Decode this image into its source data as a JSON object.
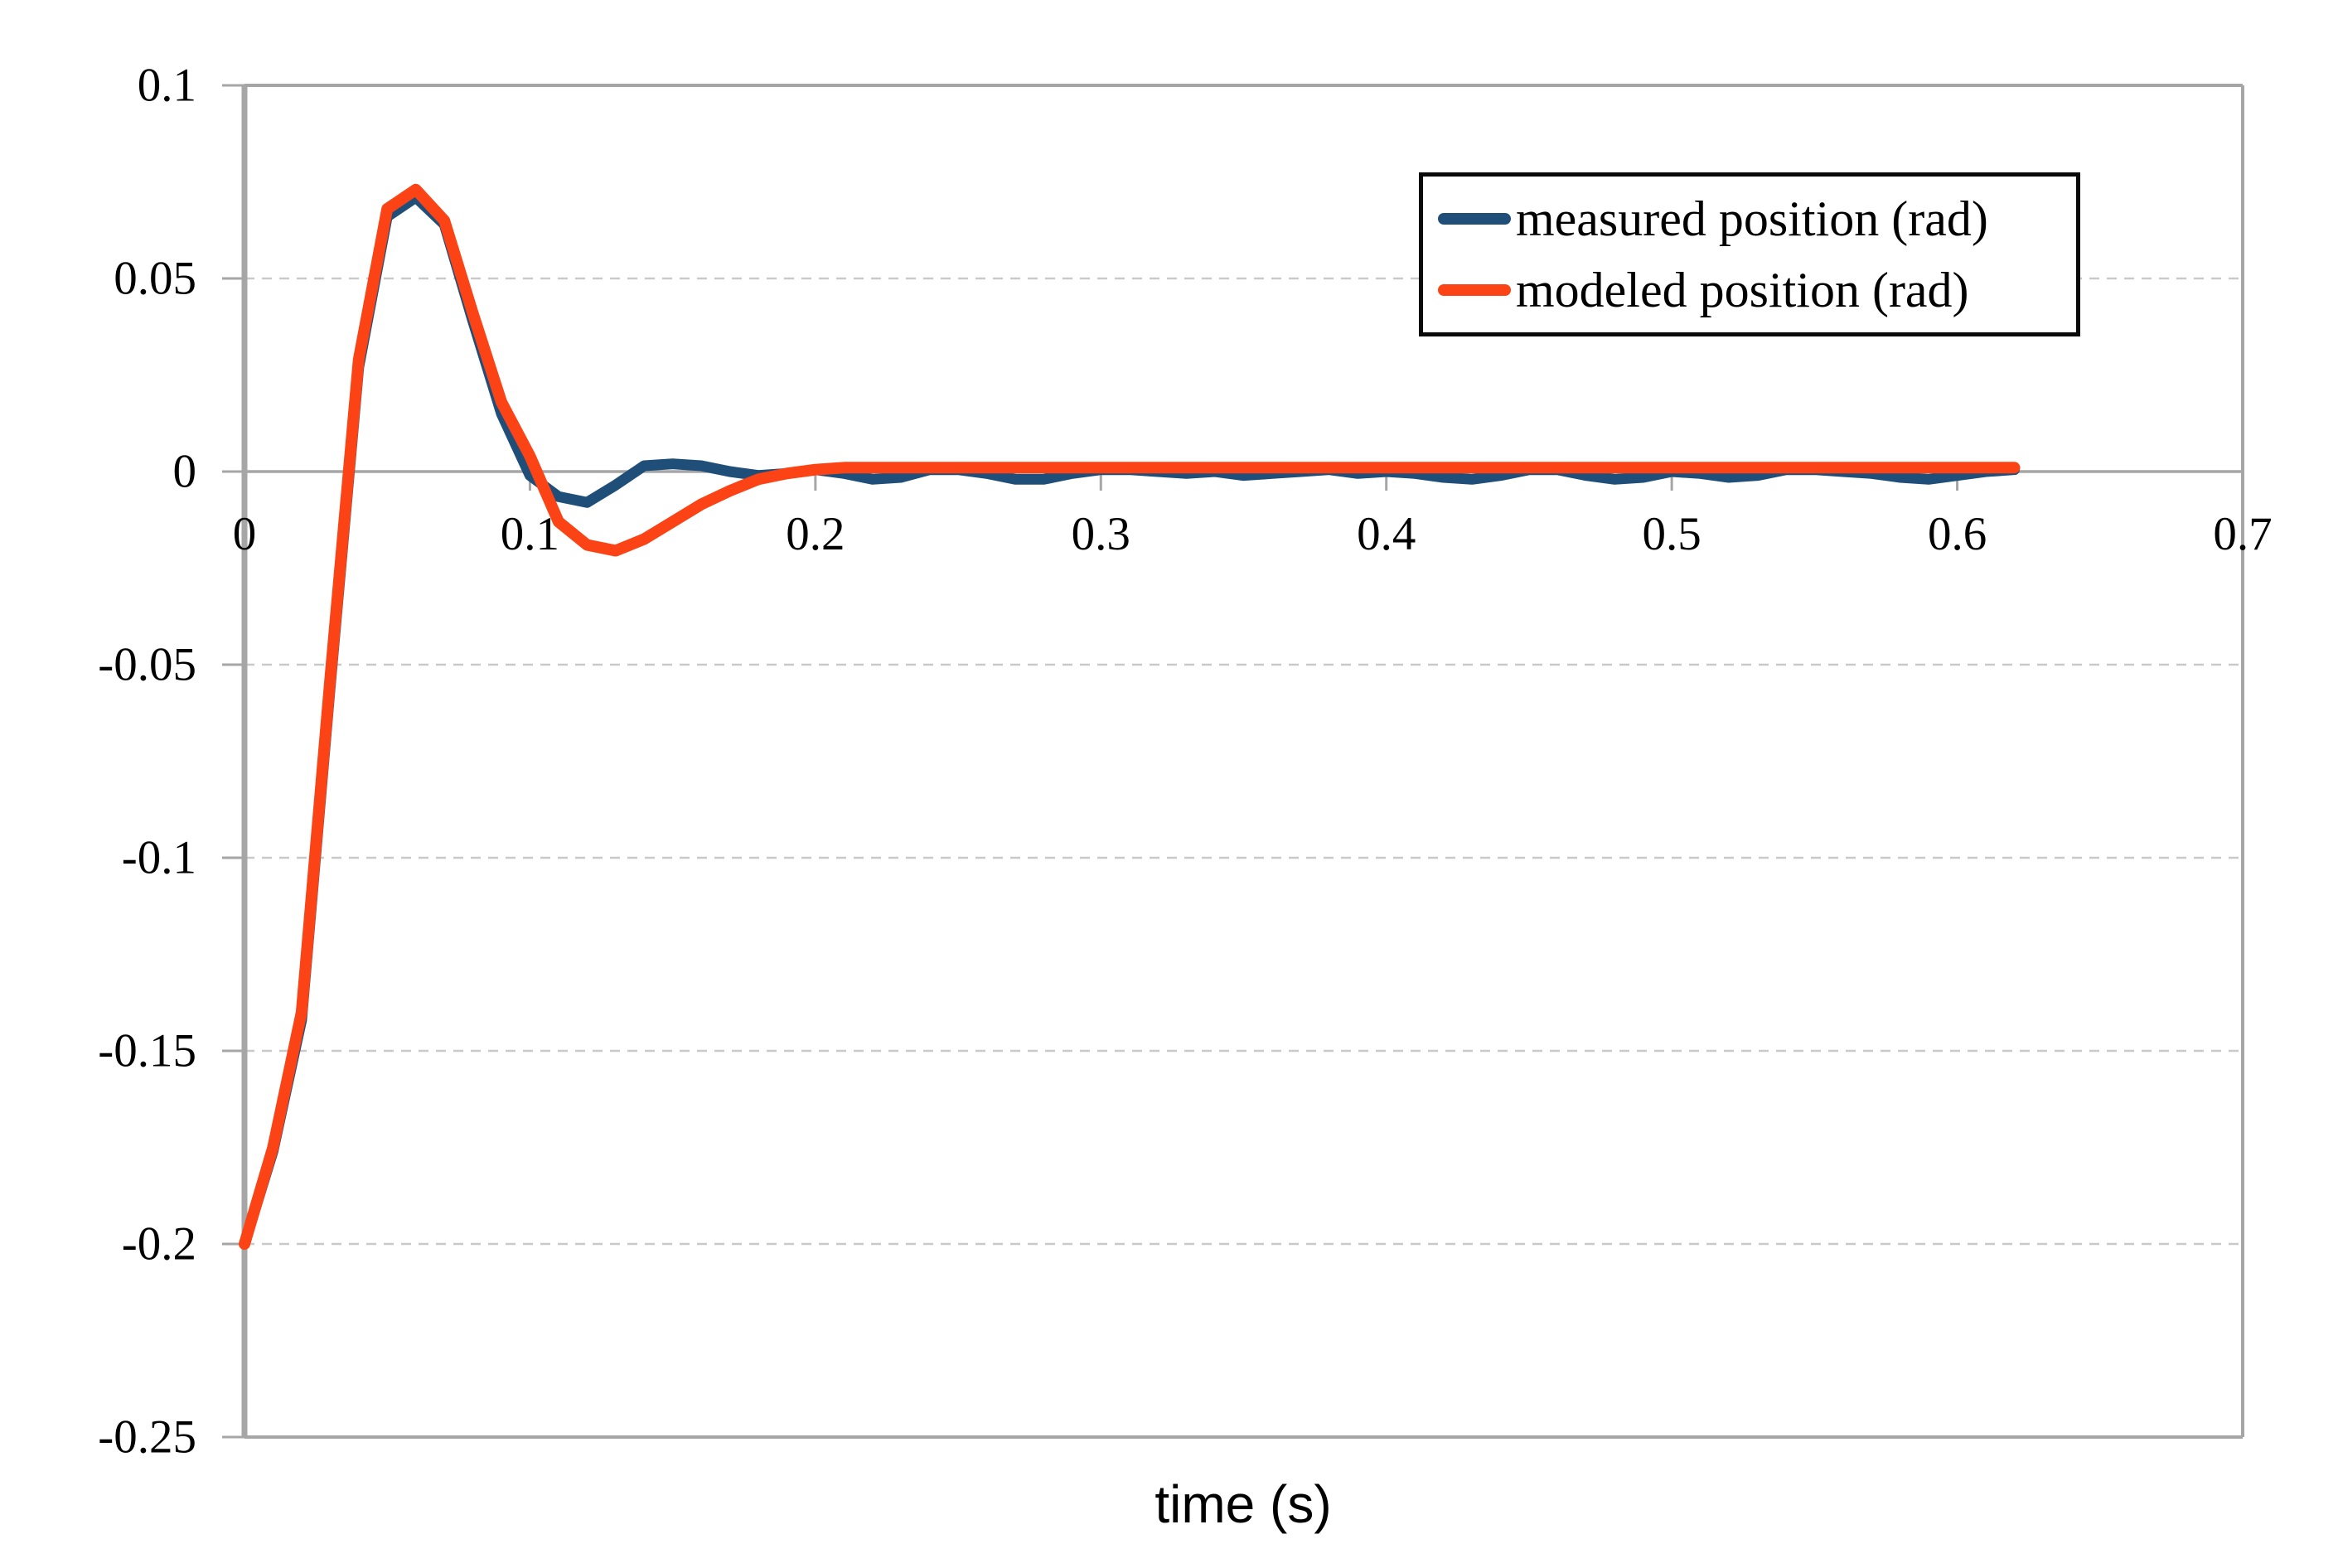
{
  "chart_data": {
    "type": "line",
    "title": "",
    "xlabel": "time (s)",
    "ylabel": "",
    "xlim": [
      0,
      0.7
    ],
    "ylim": [
      -0.25,
      0.1
    ],
    "x_ticks": [
      0,
      0.1,
      0.2,
      0.3,
      0.4,
      0.5,
      0.6,
      0.7
    ],
    "x_tick_labels": [
      "0",
      "0.1",
      "0.2",
      "0.3",
      "0.4",
      "0.5",
      "0.6",
      "0.7"
    ],
    "y_ticks": [
      0.1,
      0.05,
      0,
      -0.05,
      -0.1,
      -0.15,
      -0.2,
      -0.25
    ],
    "y_tick_labels": [
      "0.1",
      "0.05",
      "0",
      "-0.05",
      "-0.1",
      "-0.15",
      "-0.2",
      "-0.25"
    ],
    "grid": "horizontal dashed gridlines at 0.05, -0.05, -0.1, -0.15, -0.2; solid lines at 0.1, 0 and -0.25",
    "dashed_gridline_values": [
      0.05,
      -0.05,
      -0.1,
      -0.15,
      -0.2
    ],
    "legend_position": "inside upper right",
    "series": [
      {
        "name": "measured position (rad)",
        "color": "#1F4E79",
        "points": [
          [
            0.0,
            -0.2
          ],
          [
            0.01,
            -0.176
          ],
          [
            0.02,
            -0.142
          ],
          [
            0.03,
            -0.056
          ],
          [
            0.04,
            0.027
          ],
          [
            0.05,
            0.066
          ],
          [
            0.06,
            0.071
          ],
          [
            0.07,
            0.064
          ],
          [
            0.08,
            0.039
          ],
          [
            0.09,
            0.015
          ],
          [
            0.1,
            -0.001
          ],
          [
            0.11,
            -0.0065
          ],
          [
            0.12,
            -0.008
          ],
          [
            0.13,
            -0.0035
          ],
          [
            0.14,
            0.0015
          ],
          [
            0.15,
            0.002
          ],
          [
            0.16,
            0.0015
          ],
          [
            0.17,
            0.0
          ],
          [
            0.18,
            -0.001
          ],
          [
            0.19,
            -0.0005
          ],
          [
            0.2,
            0.0005
          ],
          [
            0.21,
            -0.0005
          ],
          [
            0.22,
            -0.002
          ],
          [
            0.23,
            -0.0015
          ],
          [
            0.24,
            0.0005
          ],
          [
            0.25,
            0.0005
          ],
          [
            0.26,
            -0.0005
          ],
          [
            0.27,
            -0.002
          ],
          [
            0.28,
            -0.002
          ],
          [
            0.29,
            -0.0005
          ],
          [
            0.3,
            0.0005
          ],
          [
            0.31,
            0.0005
          ],
          [
            0.32,
            0.0
          ],
          [
            0.33,
            -0.0005
          ],
          [
            0.34,
            0.0
          ],
          [
            0.35,
            -0.001
          ],
          [
            0.36,
            -0.0005
          ],
          [
            0.37,
            0.0
          ],
          [
            0.38,
            0.0005
          ],
          [
            0.39,
            -0.0005
          ],
          [
            0.4,
            0.0
          ],
          [
            0.41,
            -0.0005
          ],
          [
            0.42,
            -0.0015
          ],
          [
            0.43,
            -0.002
          ],
          [
            0.44,
            -0.001
          ],
          [
            0.45,
            0.0005
          ],
          [
            0.46,
            0.0005
          ],
          [
            0.47,
            -0.001
          ],
          [
            0.48,
            -0.002
          ],
          [
            0.49,
            -0.0015
          ],
          [
            0.5,
            0.0
          ],
          [
            0.51,
            -0.0005
          ],
          [
            0.52,
            -0.0015
          ],
          [
            0.53,
            -0.001
          ],
          [
            0.54,
            0.0005
          ],
          [
            0.55,
            0.0005
          ],
          [
            0.56,
            0.0
          ],
          [
            0.57,
            -0.0005
          ],
          [
            0.58,
            -0.0015
          ],
          [
            0.59,
            -0.002
          ],
          [
            0.6,
            -0.001
          ],
          [
            0.61,
            0.0
          ],
          [
            0.62,
            0.0005
          ]
        ]
      },
      {
        "name": "modeled position (rad)",
        "color": "#FB4316",
        "points": [
          [
            0.0,
            -0.2
          ],
          [
            0.01,
            -0.175
          ],
          [
            0.02,
            -0.14
          ],
          [
            0.03,
            -0.054
          ],
          [
            0.04,
            0.029
          ],
          [
            0.05,
            0.068
          ],
          [
            0.06,
            0.073
          ],
          [
            0.07,
            0.065
          ],
          [
            0.08,
            0.041
          ],
          [
            0.09,
            0.018
          ],
          [
            0.1,
            0.004
          ],
          [
            0.11,
            -0.013
          ],
          [
            0.12,
            -0.019
          ],
          [
            0.13,
            -0.0205
          ],
          [
            0.14,
            -0.0175
          ],
          [
            0.15,
            -0.013
          ],
          [
            0.16,
            -0.0085
          ],
          [
            0.17,
            -0.005
          ],
          [
            0.18,
            -0.002
          ],
          [
            0.19,
            -0.0005
          ],
          [
            0.2,
            0.0005
          ],
          [
            0.21,
            0.001
          ],
          [
            0.22,
            0.001
          ],
          [
            0.23,
            0.001
          ],
          [
            0.24,
            0.001
          ],
          [
            0.25,
            0.001
          ],
          [
            0.26,
            0.001
          ],
          [
            0.27,
            0.001
          ],
          [
            0.28,
            0.001
          ],
          [
            0.29,
            0.001
          ],
          [
            0.3,
            0.001
          ],
          [
            0.31,
            0.001
          ],
          [
            0.32,
            0.001
          ],
          [
            0.33,
            0.001
          ],
          [
            0.34,
            0.001
          ],
          [
            0.35,
            0.001
          ],
          [
            0.36,
            0.001
          ],
          [
            0.37,
            0.001
          ],
          [
            0.38,
            0.001
          ],
          [
            0.39,
            0.001
          ],
          [
            0.4,
            0.001
          ],
          [
            0.41,
            0.001
          ],
          [
            0.42,
            0.001
          ],
          [
            0.43,
            0.001
          ],
          [
            0.44,
            0.001
          ],
          [
            0.45,
            0.001
          ],
          [
            0.46,
            0.001
          ],
          [
            0.47,
            0.001
          ],
          [
            0.48,
            0.001
          ],
          [
            0.49,
            0.001
          ],
          [
            0.5,
            0.001
          ],
          [
            0.51,
            0.001
          ],
          [
            0.52,
            0.001
          ],
          [
            0.53,
            0.001
          ],
          [
            0.54,
            0.001
          ],
          [
            0.55,
            0.001
          ],
          [
            0.56,
            0.001
          ],
          [
            0.57,
            0.001
          ],
          [
            0.58,
            0.001
          ],
          [
            0.59,
            0.001
          ],
          [
            0.6,
            0.001
          ],
          [
            0.61,
            0.001
          ],
          [
            0.62,
            0.001
          ]
        ]
      }
    ]
  },
  "colors": {
    "background": "#FFFFFF",
    "frame": "#A6A6A6",
    "axis_line": "#A6A6A6",
    "zero_line": "#A6A6A6",
    "dashed_gridline": "#C9C9C9",
    "tick": "#A6A6A6",
    "text": "#000000",
    "legend_border": "#0A0A0A",
    "series_measured": "#1F4E79",
    "series_modeled": "#FB4316"
  }
}
